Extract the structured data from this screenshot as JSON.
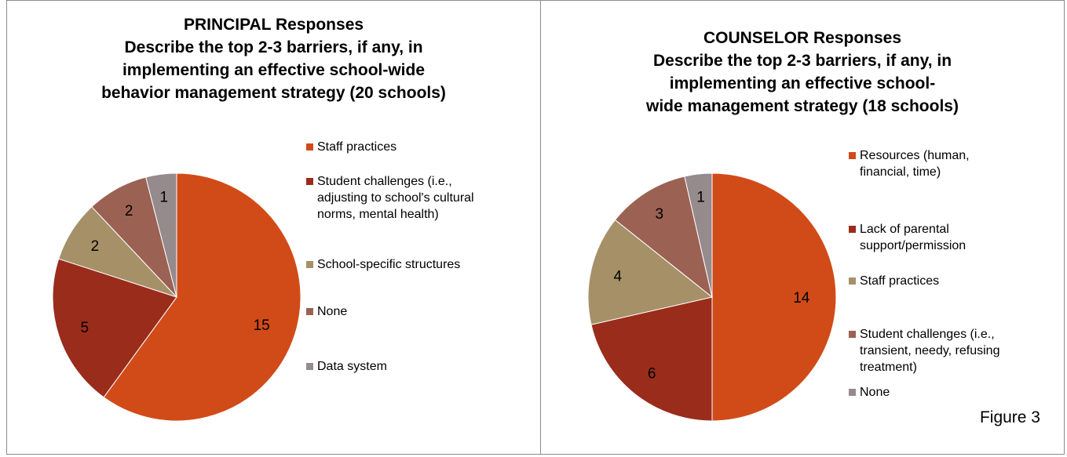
{
  "chart_data": [
    {
      "type": "pie",
      "title": [
        "PRINCIPAL Responses",
        "Describe the top 2-3 barriers, if any, in",
        "implementing an effective school-wide",
        "behavior management strategy (20 schools)"
      ],
      "labels": [
        "Staff practices",
        "Student challenges (i.e., adjusting to school's cultural norms, mental health)",
        "School-specific structures",
        "None",
        "Data system"
      ],
      "legend_lines": [
        [
          "Staff practices"
        ],
        [
          "Student challenges (i.e.,",
          "adjusting to school's cultural",
          "norms, mental health)"
        ],
        [
          "School-specific structures"
        ],
        [
          "None"
        ],
        [
          "Data system"
        ]
      ],
      "values": [
        15,
        5,
        2,
        2,
        1
      ],
      "data_labels": [
        "15",
        "5",
        "2",
        "2",
        "1"
      ],
      "colors": [
        "#D14B18",
        "#9A2C1C",
        "#A69068",
        "#9B6152",
        "#958A8C"
      ],
      "legend_placement": "right"
    },
    {
      "type": "pie",
      "title": [
        "COUNSELOR Responses",
        "Describe the top 2-3 barriers, if any, in",
        "implementing an effective school-",
        "wide management strategy (18 schools)"
      ],
      "labels": [
        "Resources (human, financial, time)",
        "Lack of parental support/permission",
        "Staff practices",
        "Student challenges (i.e., transient, needy, refusing treatment)",
        "None"
      ],
      "legend_lines": [
        [
          "Resources (human,",
          "financial, time)"
        ],
        [
          "Lack of parental",
          "support/permission"
        ],
        [
          "Staff practices"
        ],
        [
          "Student challenges (i.e.,",
          "transient, needy, refusing",
          "treatment)"
        ],
        [
          "None"
        ]
      ],
      "values": [
        14,
        6,
        4,
        3,
        1
      ],
      "data_labels": [
        "14",
        "6",
        "4",
        "3",
        "1"
      ],
      "colors": [
        "#D14B18",
        "#9A2C1C",
        "#A69068",
        "#9B6152",
        "#958A8C"
      ],
      "legend_placement": "right"
    }
  ],
  "figure_label": "Figure 3"
}
